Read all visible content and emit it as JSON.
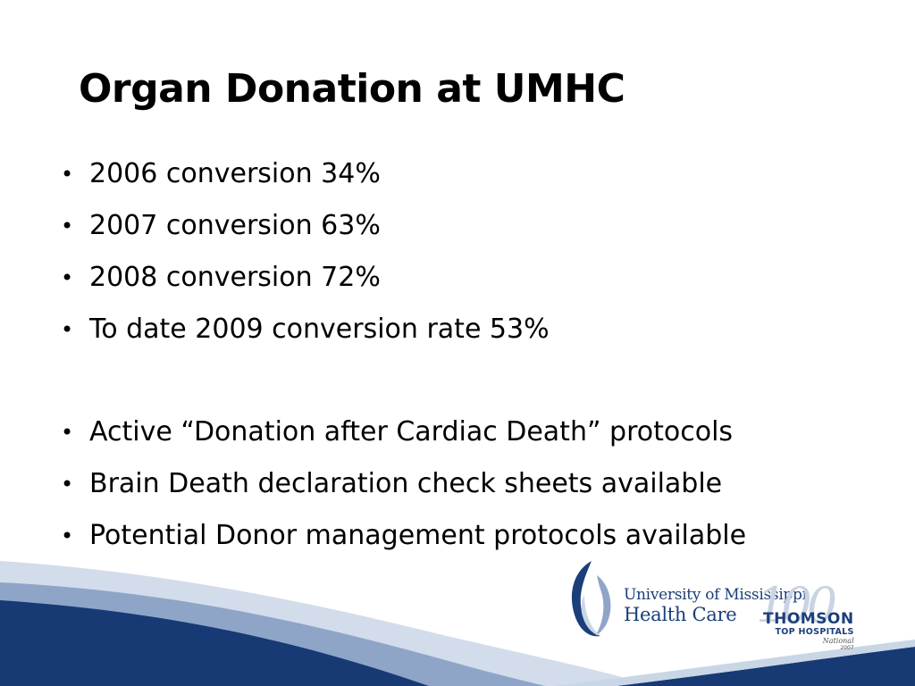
{
  "slide": {
    "title": "Organ Donation at UMHC",
    "bullet_char": "•",
    "bullets_group1": [
      "2006 conversion 34%",
      "2007 conversion 63%",
      "2008 conversion 72%",
      "To date 2009 conversion rate 53%"
    ],
    "bullets_group2": [
      "Active “Donation after Cardiac Death” protocols",
      "Brain Death declaration check sheets available",
      "Potential Donor management protocols available"
    ]
  },
  "logos": {
    "umhc_line1": "University of Mississippi",
    "umhc_line2": "Health Care",
    "hundred_mark": "100",
    "thomson_name": "THOMSON",
    "thomson_sub": "TOP HOSPITALS",
    "thomson_national": "National",
    "thomson_year": "2007"
  },
  "colors": {
    "navy": "#173a75",
    "light_blue": "#c9d6e6",
    "logo_blue": "#1b3f7a"
  }
}
